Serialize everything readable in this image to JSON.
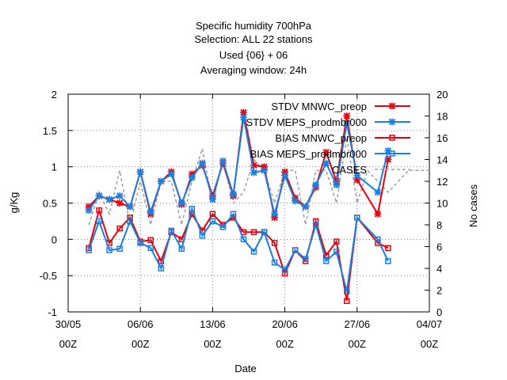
{
  "chart_data": {
    "type": "line",
    "title_lines": [
      "Specific humidity 700hPa",
      "Selection: ALL      22 stations",
      "Used {06} + 06",
      "Averaging window: 24h"
    ],
    "xlabel": "Date",
    "ylabel": "g/Kg",
    "y2label": "No cases",
    "grid": true,
    "legend_position": "top-right",
    "x_range": [
      "2022-05-30 00Z",
      "2022-07-04 00Z"
    ],
    "ylim": [
      -1,
      2
    ],
    "y2lim": [
      0,
      20
    ],
    "x_ticks": [
      {
        "d": 0,
        "line1": "30/05",
        "line2": "00Z"
      },
      {
        "d": 7,
        "line1": "06/06",
        "line2": "00Z"
      },
      {
        "d": 14,
        "line1": "13/06",
        "line2": "00Z"
      },
      {
        "d": 21,
        "line1": "20/06",
        "line2": "00Z"
      },
      {
        "d": 28,
        "line1": "27/06",
        "line2": "00Z"
      },
      {
        "d": 35,
        "line1": "04/07",
        "line2": "00Z"
      }
    ],
    "y_ticks": [
      "-1",
      "-0.5",
      "0",
      "0.5",
      "1",
      "1.5",
      "2"
    ],
    "y2_ticks": [
      "0",
      "2",
      "4",
      "6",
      "8",
      "10",
      "12",
      "14",
      "16",
      "18",
      "20"
    ],
    "x_days": [
      2,
      3,
      4,
      5,
      6,
      7,
      8,
      9,
      10,
      11,
      12,
      13,
      14,
      15,
      16,
      17,
      18,
      19,
      20,
      21,
      22,
      23,
      24,
      25,
      26,
      27,
      28,
      30,
      31
    ],
    "series": [
      {
        "name": "STDV MNWC_preop",
        "color": "#e8000b",
        "marker": "x",
        "axis": "y",
        "z": 2,
        "values": [
          0.45,
          0.6,
          0.55,
          0.5,
          0.45,
          0.93,
          0.35,
          0.8,
          0.93,
          0.48,
          0.9,
          1.02,
          0.6,
          1.05,
          0.6,
          1.75,
          1.02,
          1.0,
          0.3,
          0.93,
          0.57,
          0.45,
          0.72,
          1.2,
          0.8,
          1.7,
          0.82,
          0.35,
          1.1
        ]
      },
      {
        "name": "STDV MEPS_prodmbr000",
        "color": "#1b7fe0",
        "marker": "x",
        "axis": "y",
        "z": 3,
        "values": [
          0.4,
          0.6,
          0.55,
          0.6,
          0.45,
          0.93,
          0.38,
          0.8,
          0.9,
          0.5,
          0.85,
          1.05,
          0.55,
          1.08,
          0.62,
          1.68,
          0.92,
          0.95,
          0.35,
          0.88,
          0.53,
          0.45,
          0.75,
          1.05,
          0.75,
          1.6,
          0.88,
          0.65,
          1.22
        ]
      },
      {
        "name": "BIAS MNWC_preop",
        "color": "#e8000b",
        "marker": "square",
        "axis": "y",
        "z": 2,
        "values": [
          -0.12,
          0.4,
          -0.05,
          0.15,
          0.3,
          -0.03,
          -0.01,
          -0.3,
          0.1,
          0.0,
          0.35,
          0.12,
          0.35,
          0.2,
          0.3,
          0.1,
          0.1,
          0.1,
          -0.05,
          -0.47,
          -0.15,
          -0.3,
          0.25,
          -0.22,
          -0.03,
          -0.85,
          0.3,
          -0.05,
          -0.12
        ]
      },
      {
        "name": "BIAS MEPS_prodmbr000",
        "color": "#1b7fe0",
        "marker": "square",
        "axis": "y",
        "z": 3,
        "values": [
          -0.15,
          0.25,
          -0.15,
          -0.13,
          0.25,
          -0.05,
          -0.12,
          -0.4,
          0.12,
          -0.13,
          0.42,
          0.05,
          0.25,
          0.17,
          0.35,
          0.0,
          -0.17,
          0.1,
          -0.32,
          -0.42,
          -0.15,
          -0.27,
          0.2,
          -0.3,
          -0.17,
          -0.72,
          0.3,
          0.0,
          -0.3
        ]
      },
      {
        "name": "CASES",
        "color": "#a0a0a0",
        "marker": "none",
        "axis": "y2",
        "dashed": true,
        "z": 1,
        "x": [
          2,
          3,
          4,
          5,
          6,
          7,
          8,
          9,
          10,
          11,
          12,
          13,
          14,
          15,
          16,
          17,
          18,
          19,
          20,
          21,
          22,
          23,
          24,
          25,
          26,
          27,
          28,
          29,
          30,
          31,
          32,
          33,
          34,
          35
        ],
        "values": [
          8,
          11,
          9,
          13,
          8,
          12,
          8,
          12,
          12,
          8,
          12,
          15,
          10,
          14,
          10,
          11,
          14,
          13,
          10,
          13,
          13,
          8,
          13,
          13,
          10,
          16,
          10,
          13,
          12,
          11,
          12,
          13,
          13,
          13
        ]
      }
    ]
  }
}
